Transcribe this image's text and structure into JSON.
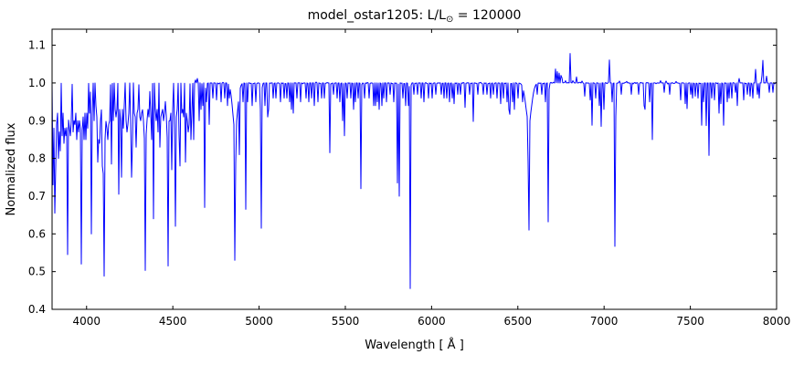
{
  "chart_data": {
    "type": "line",
    "title": {
      "prefix": "model_ostar1205: L/L",
      "solar": "⊙",
      "suffix": " = 120000"
    },
    "xlabel": "Wavelength [ Å ]",
    "ylabel": "Normalized flux",
    "xlim": [
      3800,
      8000
    ],
    "ylim": [
      0.4,
      1.1425
    ],
    "x_ticks": [
      "4000",
      "4500",
      "5000",
      "5500",
      "6000",
      "6500",
      "7000",
      "7500",
      "8000"
    ],
    "y_ticks": [
      "0.4",
      "0.5",
      "0.6",
      "0.7",
      "0.8",
      "0.9",
      "1.0",
      "1.1"
    ],
    "line_color": "#0000ff",
    "background_color": "#ffffff",
    "continuum_level": 1.0,
    "noise_amplitude": 0.0012,
    "grid": false,
    "legend": false,
    "absorption_lines": [
      [
        3803,
        0.9,
        0.8
      ],
      [
        3806,
        0.73,
        0.9
      ],
      [
        3810,
        0.88,
        0.8
      ],
      [
        3816,
        0.655,
        1.0
      ],
      [
        3820,
        0.78,
        0.8
      ],
      [
        3826,
        0.89,
        0.8
      ],
      [
        3830,
        0.92,
        0.8
      ],
      [
        3835,
        0.8,
        1.2
      ],
      [
        3840,
        0.87,
        0.8
      ],
      [
        3845,
        0.88,
        0.8
      ],
      [
        3850,
        0.82,
        0.8
      ],
      [
        3856,
        0.86,
        0.8
      ],
      [
        3860,
        0.87,
        0.8
      ],
      [
        3864,
        0.92,
        0.8
      ],
      [
        3868,
        0.84,
        0.8
      ],
      [
        3872,
        0.9,
        0.8
      ],
      [
        3876,
        0.88,
        0.8
      ],
      [
        3880,
        0.86,
        0.8
      ],
      [
        3884,
        0.9,
        0.8
      ],
      [
        3889,
        0.545,
        1.6,
        1
      ],
      [
        3896,
        0.92,
        0.8
      ],
      [
        3903,
        0.88,
        0.8
      ],
      [
        3908,
        0.86,
        0.8
      ],
      [
        3913,
        0.9,
        0.8
      ],
      [
        3920,
        0.87,
        0.8
      ],
      [
        3926,
        0.9,
        0.8
      ],
      [
        3933,
        0.89,
        0.8
      ],
      [
        3938,
        0.92,
        0.8
      ],
      [
        3942,
        0.85,
        0.8
      ],
      [
        3948,
        0.9,
        0.8
      ],
      [
        3954,
        0.87,
        0.8
      ],
      [
        3960,
        0.9,
        0.8
      ],
      [
        3964,
        0.88,
        0.8
      ],
      [
        3970,
        0.52,
        1.8,
        1
      ],
      [
        3979,
        0.91,
        0.8
      ],
      [
        3985,
        0.85,
        0.8
      ],
      [
        3990,
        0.92,
        0.8
      ],
      [
        3995,
        0.85,
        0.8
      ],
      [
        4000,
        0.92,
        0.8
      ],
      [
        4004,
        0.93,
        0.8
      ],
      [
        4009,
        0.88,
        0.8
      ],
      [
        4017,
        0.92,
        0.8
      ],
      [
        4026,
        0.6,
        1.5
      ],
      [
        4035,
        0.92,
        0.8
      ],
      [
        4041,
        0.9,
        0.8
      ],
      [
        4046,
        0.93,
        0.8
      ],
      [
        4052,
        0.94,
        0.8
      ],
      [
        4058,
        0.91,
        0.8
      ],
      [
        4064,
        0.79,
        0.9
      ],
      [
        4070,
        0.85,
        0.8
      ],
      [
        4076,
        0.84,
        0.8
      ],
      [
        4082,
        0.9,
        0.8
      ],
      [
        4089,
        0.78,
        0.9
      ],
      [
        4097,
        0.76,
        1.0
      ],
      [
        4102,
        0.488,
        2.2,
        1
      ],
      [
        4110,
        0.92,
        0.8
      ],
      [
        4116,
        0.88,
        0.8
      ],
      [
        4121,
        0.85,
        0.8
      ],
      [
        4128,
        0.89,
        0.8
      ],
      [
        4132,
        0.9,
        0.8
      ],
      [
        4144,
        0.785,
        0.9
      ],
      [
        4153,
        0.9,
        0.8
      ],
      [
        4163,
        0.93,
        0.8
      ],
      [
        4169,
        0.91,
        0.8
      ],
      [
        4178,
        0.93,
        0.8
      ],
      [
        4186,
        0.705,
        0.9
      ],
      [
        4191,
        0.93,
        0.8
      ],
      [
        4196,
        0.9,
        0.8
      ],
      [
        4200,
        0.75,
        1.4
      ],
      [
        4206,
        0.93,
        0.8
      ],
      [
        4213,
        0.88,
        0.8
      ],
      [
        4220,
        0.94,
        0.8
      ],
      [
        4227,
        0.9,
        0.8
      ],
      [
        4234,
        0.87,
        0.8
      ],
      [
        4241,
        0.89,
        0.8
      ],
      [
        4247,
        0.92,
        0.8
      ],
      [
        4253,
        0.9,
        0.8
      ],
      [
        4260,
        0.75,
        0.9
      ],
      [
        4267,
        0.84,
        0.8
      ],
      [
        4275,
        0.92,
        0.8
      ],
      [
        4282,
        0.91,
        0.8
      ],
      [
        4287,
        0.83,
        0.8
      ],
      [
        4294,
        0.92,
        0.8
      ],
      [
        4300,
        0.93,
        0.8
      ],
      [
        4307,
        0.91,
        0.8
      ],
      [
        4314,
        0.9,
        0.8
      ],
      [
        4320,
        0.92,
        0.8
      ],
      [
        4327,
        0.93,
        0.8
      ],
      [
        4332,
        0.9,
        0.8
      ],
      [
        4340,
        0.503,
        2.2,
        1
      ],
      [
        4350,
        0.92,
        0.8
      ],
      [
        4357,
        0.93,
        0.8
      ],
      [
        4364,
        0.91,
        0.8
      ],
      [
        4372,
        0.92,
        0.8
      ],
      [
        4379,
        0.85,
        0.8
      ],
      [
        4388,
        0.64,
        1.4
      ],
      [
        4397,
        0.93,
        0.8
      ],
      [
        4404,
        0.9,
        0.8
      ],
      [
        4411,
        0.93,
        0.8
      ],
      [
        4417,
        0.87,
        0.8
      ],
      [
        4424,
        0.83,
        0.8
      ],
      [
        4431,
        0.91,
        0.8
      ],
      [
        4438,
        0.92,
        0.8
      ],
      [
        4443,
        0.93,
        0.8
      ],
      [
        4448,
        0.9,
        0.8
      ],
      [
        4454,
        0.92,
        0.8
      ],
      [
        4460,
        0.93,
        0.8
      ],
      [
        4466,
        0.9,
        0.8
      ],
      [
        4471,
        0.515,
        1.6,
        1
      ],
      [
        4481,
        0.9,
        0.8
      ],
      [
        4489,
        0.92,
        0.8
      ],
      [
        4493,
        0.77,
        0.9
      ],
      [
        4500,
        0.93,
        0.8
      ],
      [
        4508,
        0.88,
        0.8
      ],
      [
        4514,
        0.62,
        1.0
      ],
      [
        4522,
        0.91,
        0.8
      ],
      [
        4528,
        0.93,
        0.8
      ],
      [
        4534,
        0.86,
        0.8
      ],
      [
        4542,
        0.78,
        1.4
      ],
      [
        4550,
        0.92,
        0.8
      ],
      [
        4557,
        0.93,
        0.8
      ],
      [
        4563,
        0.91,
        0.8
      ],
      [
        4571,
        0.79,
        0.9
      ],
      [
        4577,
        0.92,
        0.8
      ],
      [
        4583,
        0.9,
        0.8
      ],
      [
        4590,
        0.87,
        0.8
      ],
      [
        4596,
        0.89,
        0.8
      ],
      [
        4604,
        0.85,
        0.8
      ],
      [
        4610,
        0.92,
        0.8
      ],
      [
        4620,
        0.85,
        0.8
      ],
      [
        4626,
        0.93,
        0.8
      ],
      [
        4647,
        0.87,
        0.8
      ],
      [
        4650,
        0.86,
        0.8
      ],
      [
        4654,
        0.9,
        0.8
      ],
      [
        4662,
        0.93,
        0.8
      ],
      [
        4676,
        0.94,
        0.8
      ],
      [
        4686,
        0.67,
        1.5
      ],
      [
        4694,
        0.95,
        0.8
      ],
      [
        4713,
        0.89,
        0.9
      ],
      [
        4733,
        0.96,
        0.8
      ],
      [
        4751,
        0.955,
        0.8
      ],
      [
        4780,
        0.95,
        0.8
      ],
      [
        4803,
        0.96,
        0.8
      ],
      [
        4815,
        0.94,
        0.8
      ],
      [
        4828,
        0.96,
        0.8
      ],
      [
        4861,
        0.53,
        2.2,
        1
      ],
      [
        4880,
        0.95,
        0.8
      ],
      [
        4888,
        0.81,
        0.9
      ],
      [
        4907,
        0.95,
        0.8
      ],
      [
        4922,
        0.665,
        1.2
      ],
      [
        4935,
        0.95,
        0.8
      ],
      [
        4962,
        0.94,
        0.8
      ],
      [
        4980,
        0.95,
        0.8
      ],
      [
        5005,
        0.93,
        0.8
      ],
      [
        5015,
        0.615,
        1.2
      ],
      [
        5032,
        0.94,
        0.8
      ],
      [
        5048,
        0.91,
        0.9
      ],
      [
        5056,
        0.93,
        0.8
      ],
      [
        5080,
        0.96,
        0.8
      ],
      [
        5100,
        0.96,
        0.8
      ],
      [
        5122,
        0.95,
        0.8
      ],
      [
        5145,
        0.96,
        0.8
      ],
      [
        5160,
        0.96,
        0.8
      ],
      [
        5176,
        0.95,
        0.8
      ],
      [
        5190,
        0.93,
        0.8
      ],
      [
        5200,
        0.92,
        0.8
      ],
      [
        5220,
        0.96,
        0.8
      ],
      [
        5240,
        0.95,
        0.8
      ],
      [
        5270,
        0.96,
        0.8
      ],
      [
        5290,
        0.95,
        0.8
      ],
      [
        5305,
        0.96,
        0.8
      ],
      [
        5320,
        0.94,
        0.8
      ],
      [
        5340,
        0.95,
        0.8
      ],
      [
        5360,
        0.96,
        0.8
      ],
      [
        5380,
        0.96,
        0.8
      ],
      [
        5411,
        0.815,
        1.5
      ],
      [
        5430,
        0.97,
        0.8
      ],
      [
        5455,
        0.96,
        0.8
      ],
      [
        5470,
        0.95,
        0.8
      ],
      [
        5486,
        0.9,
        0.8
      ],
      [
        5494,
        0.86,
        0.8
      ],
      [
        5510,
        0.96,
        0.8
      ],
      [
        5530,
        0.96,
        0.8
      ],
      [
        5546,
        0.93,
        0.8
      ],
      [
        5560,
        0.95,
        0.8
      ],
      [
        5575,
        0.96,
        0.8
      ],
      [
        5592,
        0.72,
        1.2
      ],
      [
        5610,
        0.96,
        0.8
      ],
      [
        5640,
        0.96,
        0.8
      ],
      [
        5666,
        0.94,
        0.8
      ],
      [
        5676,
        0.94,
        0.8
      ],
      [
        5686,
        0.95,
        0.8
      ],
      [
        5696,
        0.93,
        0.8
      ],
      [
        5710,
        0.94,
        0.8
      ],
      [
        5722,
        0.96,
        0.8
      ],
      [
        5740,
        0.95,
        0.8
      ],
      [
        5760,
        0.97,
        0.8
      ],
      [
        5780,
        0.95,
        0.8
      ],
      [
        5801,
        0.735,
        1.2
      ],
      [
        5812,
        0.7,
        1.2
      ],
      [
        5833,
        0.96,
        0.8
      ],
      [
        5848,
        0.94,
        0.8
      ],
      [
        5863,
        0.94,
        0.8
      ],
      [
        5876,
        0.455,
        1.8
      ],
      [
        5896,
        0.97,
        0.8
      ],
      [
        5920,
        0.97,
        0.8
      ],
      [
        5940,
        0.96,
        0.8
      ],
      [
        5953,
        0.95,
        0.8
      ],
      [
        5980,
        0.96,
        0.8
      ],
      [
        6004,
        0.96,
        0.8
      ],
      [
        6024,
        0.97,
        0.8
      ],
      [
        6055,
        0.97,
        0.8
      ],
      [
        6070,
        0.96,
        0.8
      ],
      [
        6090,
        0.96,
        0.8
      ],
      [
        6103,
        0.95,
        0.8
      ],
      [
        6120,
        0.96,
        0.8
      ],
      [
        6133,
        0.945,
        0.8
      ],
      [
        6150,
        0.97,
        0.8
      ],
      [
        6170,
        0.97,
        0.8
      ],
      [
        6196,
        0.935,
        0.8
      ],
      [
        6220,
        0.97,
        0.8
      ],
      [
        6244,
        0.898,
        0.8
      ],
      [
        6270,
        0.97,
        0.8
      ],
      [
        6300,
        0.97,
        0.8
      ],
      [
        6320,
        0.97,
        0.8
      ],
      [
        6340,
        0.96,
        0.8
      ],
      [
        6360,
        0.97,
        0.8
      ],
      [
        6380,
        0.96,
        0.8
      ],
      [
        6402,
        0.945,
        0.8
      ],
      [
        6415,
        0.96,
        0.8
      ],
      [
        6437,
        0.95,
        0.8
      ],
      [
        6449,
        0.93,
        0.8
      ],
      [
        6456,
        0.917,
        0.8
      ],
      [
        6470,
        0.95,
        0.8
      ],
      [
        6482,
        0.93,
        0.8
      ],
      [
        6500,
        0.96,
        0.8
      ],
      [
        6527,
        0.95,
        0.8
      ],
      [
        6563,
        0.61,
        2.6,
        1
      ],
      [
        6583,
        0.97,
        0.8
      ],
      [
        6610,
        0.97,
        0.8
      ],
      [
        6640,
        0.97,
        0.8
      ],
      [
        6661,
        0.95,
        0.8
      ],
      [
        6678,
        0.632,
        1.3
      ],
      [
        6890,
        0.965,
        0.8
      ],
      [
        6920,
        0.955,
        0.8
      ],
      [
        6930,
        0.888,
        0.8
      ],
      [
        6950,
        0.96,
        0.8
      ],
      [
        6970,
        0.94,
        0.8
      ],
      [
        6981,
        0.885,
        0.8
      ],
      [
        7000,
        0.93,
        0.8
      ],
      [
        7048,
        0.95,
        0.8
      ],
      [
        7065,
        0.567,
        1.6
      ],
      [
        7100,
        0.97,
        0.8
      ],
      [
        7160,
        0.97,
        0.8
      ],
      [
        7200,
        0.97,
        0.8
      ],
      [
        7231,
        0.94,
        0.8
      ],
      [
        7236,
        0.93,
        0.8
      ],
      [
        7262,
        0.95,
        0.8
      ],
      [
        7281,
        0.85,
        1.0
      ],
      [
        7320,
        0.97,
        0.8
      ],
      [
        7350,
        0.975,
        0.8
      ],
      [
        7380,
        0.97,
        0.8
      ],
      [
        7410,
        0.975,
        0.8
      ],
      [
        7442,
        0.955,
        0.8
      ],
      [
        7468,
        0.945,
        0.8
      ],
      [
        7482,
        0.932,
        0.8
      ],
      [
        7500,
        0.97,
        0.8
      ],
      [
        7515,
        0.96,
        0.8
      ],
      [
        7530,
        0.965,
        0.8
      ],
      [
        7547,
        0.96,
        0.8
      ],
      [
        7565,
        0.888,
        0.8
      ],
      [
        7578,
        0.95,
        0.8
      ],
      [
        7594,
        0.887,
        0.8
      ],
      [
        7609,
        0.808,
        0.9
      ],
      [
        7625,
        0.96,
        0.8
      ],
      [
        7640,
        0.955,
        0.8
      ],
      [
        7665,
        0.92,
        0.8
      ],
      [
        7678,
        0.945,
        0.8
      ],
      [
        7693,
        0.888,
        0.8
      ],
      [
        7712,
        0.95,
        0.8
      ],
      [
        7725,
        0.96,
        0.8
      ],
      [
        7740,
        0.96,
        0.8
      ],
      [
        7764,
        0.975,
        0.8
      ],
      [
        7774,
        0.94,
        0.8
      ],
      [
        7790,
        0.965,
        0.8
      ],
      [
        7810,
        0.955,
        0.8
      ],
      [
        7830,
        0.97,
        0.8
      ],
      [
        7845,
        0.965,
        0.8
      ],
      [
        7862,
        0.96,
        0.8
      ],
      [
        7890,
        0.97,
        0.8
      ],
      [
        7900,
        0.96,
        0.8
      ],
      [
        7935,
        0.965,
        0.8
      ],
      [
        7960,
        0.975,
        0.8
      ],
      [
        7980,
        0.975,
        0.8
      ]
    ],
    "emission_lines": [
      [
        4634,
        1.008,
        0.8
      ],
      [
        4641,
        1.012,
        0.8
      ],
      [
        6717,
        1.037,
        0.8
      ],
      [
        6730,
        1.03,
        0.8
      ],
      [
        6738,
        1.026,
        0.8
      ],
      [
        6749,
        1.02,
        0.8
      ],
      [
        6758,
        1.014,
        0.8
      ],
      [
        6779,
        1.006,
        0.8
      ],
      [
        6802,
        1.078,
        0.8
      ],
      [
        6820,
        1.006,
        0.8
      ],
      [
        6842,
        1.016,
        0.8
      ],
      [
        6870,
        1.005,
        0.8
      ],
      [
        7032,
        1.061,
        0.8
      ],
      [
        7090,
        1.005,
        0.8
      ],
      [
        7130,
        1.004,
        0.8
      ],
      [
        7330,
        1.006,
        0.8
      ],
      [
        7360,
        1.005,
        0.8
      ],
      [
        7420,
        1.004,
        0.8
      ],
      [
        7785,
        1.012,
        0.8
      ],
      [
        7876,
        1.036,
        0.8
      ],
      [
        7913,
        1.02,
        0.8
      ],
      [
        7923,
        1.06,
        0.8
      ],
      [
        7942,
        1.018,
        0.8
      ]
    ]
  }
}
